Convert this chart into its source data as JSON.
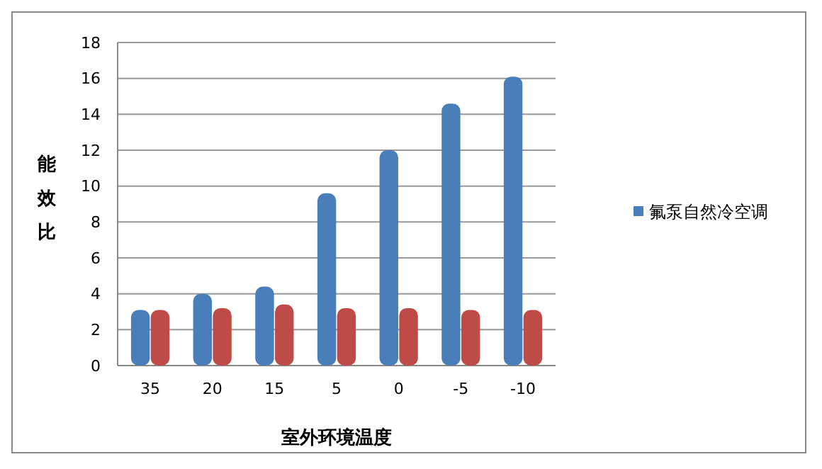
{
  "chart_data": {
    "type": "bar",
    "xlabel": "室外环境温度",
    "ylabel": "能效比",
    "categories": [
      "35",
      "20",
      "15",
      "5",
      "0",
      "-5",
      "-10"
    ],
    "series": [
      {
        "name": "氟泵自然冷空调",
        "color": "#4a7ebb",
        "values": [
          3.1,
          4.0,
          4.4,
          9.6,
          12,
          14.6,
          16.1
        ]
      },
      {
        "color": "#be4b48",
        "values": [
          3.1,
          3.2,
          3.4,
          3.2,
          3.2,
          3.1,
          3.1
        ]
      }
    ],
    "ylim": [
      0,
      18
    ],
    "yticks": [
      0,
      2,
      4,
      6,
      8,
      10,
      12,
      14,
      16,
      18
    ],
    "grid": "y",
    "legend": "right"
  }
}
